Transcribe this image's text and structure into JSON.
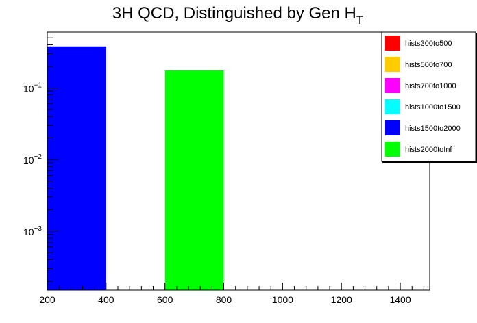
{
  "chart_data": {
    "type": "bar",
    "title": "3H QCD, Distinguished by Gen H",
    "title_subscript": "T",
    "xlabel": "",
    "ylabel": "",
    "xlim": [
      200,
      1500
    ],
    "ylim": [
      0.00015,
      0.6
    ],
    "yscale": "log",
    "grid": false,
    "legend_position": "top-right",
    "x_ticks": [
      "200",
      "400",
      "600",
      "800",
      "1000",
      "1200",
      "1400"
    ],
    "y_ticks": [
      {
        "base": "10",
        "exp": "−1",
        "value": 0.1
      },
      {
        "base": "10",
        "exp": "−2",
        "value": 0.01
      },
      {
        "base": "10",
        "exp": "−3",
        "value": 0.001
      }
    ],
    "series": [
      {
        "name": "hists300to500",
        "color": "#ff0000",
        "bins": []
      },
      {
        "name": "hists500to700",
        "color": "#ffcc00",
        "bins": []
      },
      {
        "name": "hists700to1000",
        "color": "#ff00ff",
        "bins": []
      },
      {
        "name": "hists1000to1500",
        "color": "#00ffff",
        "bins": []
      },
      {
        "name": "hists1500to2000",
        "color": "#0000ff",
        "bins": [
          {
            "x0": 200,
            "x1": 400,
            "value": 0.38
          }
        ]
      },
      {
        "name": "hists2000toInf",
        "color": "#00ff00",
        "bins": [
          {
            "x0": 600,
            "x1": 800,
            "value": 0.175
          }
        ]
      }
    ]
  }
}
